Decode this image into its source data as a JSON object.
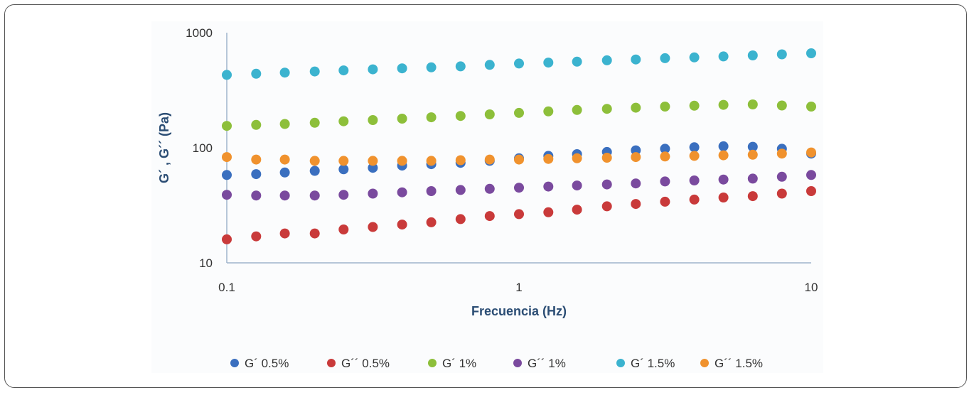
{
  "chart_data": {
    "type": "scatter",
    "xlabel": "Frecuencia (Hz)",
    "ylabel": "G´ , G´´ (Pa)",
    "x_scale": "log",
    "y_scale": "log",
    "xlim": [
      0.1,
      10
    ],
    "ylim": [
      10,
      1000
    ],
    "x_ticks": [
      "0.1",
      "1",
      "10"
    ],
    "y_ticks": [
      "10",
      "100",
      "1000"
    ],
    "grid": false,
    "legend_position": "bottom",
    "x": [
      0.1,
      0.126,
      0.158,
      0.2,
      0.251,
      0.316,
      0.398,
      0.501,
      0.631,
      0.794,
      1.0,
      1.26,
      1.58,
      2.0,
      2.51,
      3.16,
      3.98,
      5.01,
      6.31,
      7.94,
      10.0
    ],
    "series": [
      {
        "name": "G´ 0.5%",
        "color": "#3a6fbf",
        "values": [
          58,
          59,
          61,
          63,
          65,
          67,
          70,
          72,
          74,
          77,
          81,
          85,
          88,
          92,
          95,
          98,
          101,
          103,
          102,
          98,
          89
        ]
      },
      {
        "name": "G´´ 0.5%",
        "color": "#c93a3a",
        "values": [
          16,
          17,
          18,
          18,
          19.5,
          20.5,
          21.5,
          22.5,
          24,
          25.5,
          26.5,
          27.5,
          29,
          31,
          32.5,
          34,
          35.5,
          37,
          38,
          40,
          42
        ]
      },
      {
        "name": "G´ 1%",
        "color": "#8dbf3a",
        "values": [
          155,
          158,
          161,
          165,
          170,
          174,
          179,
          184,
          189,
          195,
          201,
          207,
          213,
          218,
          223,
          228,
          232,
          236,
          238,
          233,
          228
        ]
      },
      {
        "name": "G´´ 1%",
        "color": "#7a4a9e",
        "values": [
          39,
          38.5,
          38.5,
          38.5,
          39,
          40,
          41,
          42,
          43,
          44,
          45,
          46,
          47,
          48,
          49,
          51,
          52,
          53,
          54,
          56,
          58
        ]
      },
      {
        "name": "G´ 1.5%",
        "color": "#3bb3cf",
        "values": [
          430,
          440,
          450,
          460,
          470,
          480,
          490,
          500,
          510,
          525,
          540,
          550,
          560,
          575,
          585,
          600,
          610,
          622,
          635,
          648,
          662
        ]
      },
      {
        "name": "G´´ 1.5%",
        "color": "#f0922e",
        "values": [
          83,
          79,
          79,
          77,
          77,
          77,
          77,
          77,
          78,
          79,
          79,
          80,
          81,
          82,
          83,
          84,
          85,
          86,
          87,
          89,
          91
        ]
      }
    ]
  }
}
